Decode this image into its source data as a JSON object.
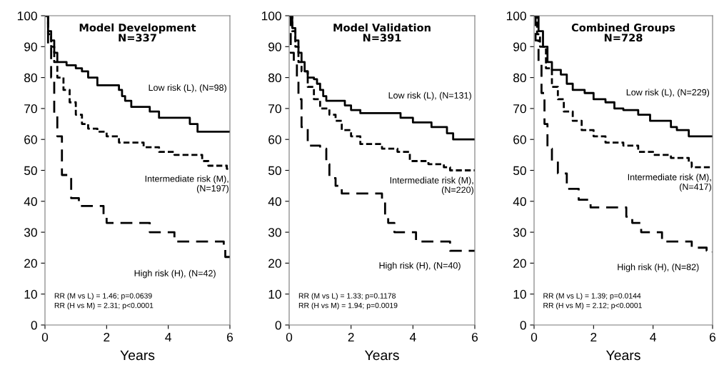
{
  "chart_data": [
    {
      "type": "step",
      "title": "Model Development\nN=337",
      "xlabel": "Years",
      "xlim": [
        0,
        6
      ],
      "xticks": [
        0,
        2,
        4,
        6
      ],
      "ylim": [
        0,
        100
      ],
      "yticks": [
        0,
        10,
        20,
        30,
        40,
        50,
        60,
        70,
        80,
        90,
        100
      ],
      "grid": false,
      "legend": false,
      "series": [
        {
          "name": "Low risk (L), (N=98)",
          "color": "#000000",
          "line_style": "solid",
          "x": [
            0,
            0.1,
            0.2,
            0.3,
            0.4,
            0.7,
            1.0,
            1.2,
            1.4,
            1.7,
            2.4,
            2.5,
            2.6,
            2.8,
            3.4,
            3.7,
            4.7,
            4.95,
            6
          ],
          "values": [
            100,
            95,
            92,
            88,
            85,
            84,
            83,
            82,
            80,
            77.5,
            76,
            74,
            72.5,
            70.5,
            69,
            67,
            65,
            62.5,
            62.5
          ]
        },
        {
          "name": "Intermediate risk (M),\n(N=197)",
          "color": "#000000",
          "line_style": "dotted",
          "x": [
            0,
            0.1,
            0.2,
            0.3,
            0.4,
            0.6,
            0.8,
            1.0,
            1.2,
            1.4,
            1.7,
            2.0,
            2.4,
            3.2,
            3.7,
            4.2,
            5.1,
            5.3,
            5.9,
            6
          ],
          "values": [
            100,
            94,
            90,
            85,
            80,
            76,
            72,
            68,
            65,
            63.5,
            62.5,
            61,
            59,
            57.5,
            56,
            55,
            53,
            51.5,
            50.5,
            50.5
          ]
        },
        {
          "name": "High risk (H), (N=42)",
          "color": "#000000",
          "line_style": "dashed",
          "x": [
            0,
            0.1,
            0.2,
            0.3,
            0.4,
            0.55,
            0.85,
            1.1,
            1.9,
            2.0,
            3.4,
            4.2,
            5.8,
            5.85,
            6
          ],
          "values": [
            100,
            90,
            80,
            68,
            61,
            48.5,
            41,
            38.5,
            35,
            33,
            30,
            27,
            25,
            22,
            21.5
          ]
        }
      ],
      "annotations": [
        "RR (M vs L) = 1.46; p=0.0639\nRR (H vs M) = 2.31; p<0.0001"
      ]
    },
    {
      "type": "step",
      "title": "Model Validation\nN=391",
      "xlabel": "Years",
      "xlim": [
        0,
        6
      ],
      "xticks": [
        0,
        2,
        4,
        6
      ],
      "ylim": [
        0,
        100
      ],
      "yticks": [
        0,
        10,
        20,
        30,
        40,
        50,
        60,
        70,
        80,
        90,
        100
      ],
      "grid": false,
      "legend": false,
      "series": [
        {
          "name": "Low risk (L), (N=131)",
          "color": "#000000",
          "line_style": "solid",
          "x": [
            0,
            0.1,
            0.2,
            0.3,
            0.4,
            0.5,
            0.6,
            0.8,
            0.9,
            1.0,
            1.1,
            1.2,
            1.8,
            2.0,
            2.3,
            3.6,
            4.0,
            4.6,
            5.1,
            5.3,
            6
          ],
          "values": [
            100,
            96,
            92,
            88,
            85,
            82,
            80,
            79.5,
            78,
            76,
            74,
            72.5,
            71,
            69.5,
            68.5,
            67,
            65.5,
            64,
            62,
            60,
            60
          ]
        },
        {
          "name": "Intermediate risk (M),\n(N=220)",
          "color": "#000000",
          "line_style": "dotted",
          "x": [
            0,
            0.1,
            0.2,
            0.3,
            0.4,
            0.6,
            0.8,
            1.0,
            1.3,
            1.5,
            1.7,
            2.0,
            2.3,
            3.0,
            3.5,
            3.9,
            4.5,
            5.0,
            5.2,
            6
          ],
          "values": [
            100,
            95,
            90,
            85,
            82,
            77,
            73,
            70,
            68,
            66,
            63,
            61,
            58.5,
            57,
            56,
            53,
            52,
            51,
            50,
            50
          ]
        },
        {
          "name": "High risk (H), (N=40)",
          "color": "#000000",
          "line_style": "dashed",
          "x": [
            0,
            0.05,
            0.15,
            0.25,
            0.3,
            0.4,
            0.6,
            1.0,
            1.2,
            1.3,
            1.5,
            1.7,
            3.0,
            3.1,
            3.2,
            3.4,
            4.1,
            5.2,
            6
          ],
          "values": [
            100,
            88,
            85,
            80,
            73,
            64,
            58,
            57,
            52,
            47.5,
            45,
            42.5,
            40,
            35,
            33,
            30,
            27,
            24,
            24
          ]
        }
      ],
      "annotations": [
        "RR (M vs L) = 1.33; p=0.1178\nRR (H vs M) = 1.94; p=0.0019"
      ]
    },
    {
      "type": "step",
      "title": "Combined Groups\nN=728",
      "xlabel": "Years",
      "xlim": [
        0,
        6
      ],
      "xticks": [
        0,
        2,
        4,
        6
      ],
      "ylim": [
        0,
        100
      ],
      "yticks": [
        0,
        10,
        20,
        30,
        40,
        50,
        60,
        70,
        80,
        90,
        100
      ],
      "grid": false,
      "legend": false,
      "series": [
        {
          "name": "Low risk (L), (N=229)",
          "color": "#000000",
          "line_style": "solid",
          "x": [
            0,
            0.15,
            0.3,
            0.45,
            0.6,
            0.9,
            1.1,
            1.3,
            1.7,
            2.0,
            2.4,
            2.7,
            3.0,
            3.5,
            3.9,
            4.6,
            4.8,
            5.2,
            6
          ],
          "values": [
            100,
            95,
            90,
            85,
            82.5,
            81,
            78,
            76,
            75,
            73,
            72,
            70,
            69.5,
            68,
            66,
            64,
            63,
            61,
            61
          ]
        },
        {
          "name": "Intermediate risk (M),\n(N=417)",
          "color": "#000000",
          "line_style": "dotted",
          "x": [
            0,
            0.1,
            0.2,
            0.4,
            0.6,
            0.8,
            1.0,
            1.3,
            1.6,
            2.0,
            2.4,
            3.0,
            3.5,
            4.0,
            4.6,
            5.2,
            5.3,
            6
          ],
          "values": [
            100,
            94,
            90,
            83,
            77,
            73,
            69,
            66,
            63,
            61,
            59,
            58,
            56,
            55,
            54,
            52.5,
            51,
            51
          ]
        },
        {
          "name": "High risk (H), (N=82)",
          "color": "#000000",
          "line_style": "dashed",
          "x": [
            0,
            0.05,
            0.15,
            0.25,
            0.35,
            0.45,
            0.6,
            0.8,
            1.1,
            1.5,
            1.9,
            3.1,
            3.3,
            3.6,
            4.3,
            5.3,
            5.8,
            6
          ],
          "values": [
            100,
            92,
            85,
            75,
            65,
            57,
            53,
            49,
            44,
            40.5,
            38,
            35,
            33,
            30,
            27,
            25,
            24,
            23.5
          ]
        }
      ],
      "annotations": [
        "RR (M vs L) = 1.39; p=0.0144\nRR (H vs M) = 2.12; p<0.0001"
      ]
    }
  ]
}
